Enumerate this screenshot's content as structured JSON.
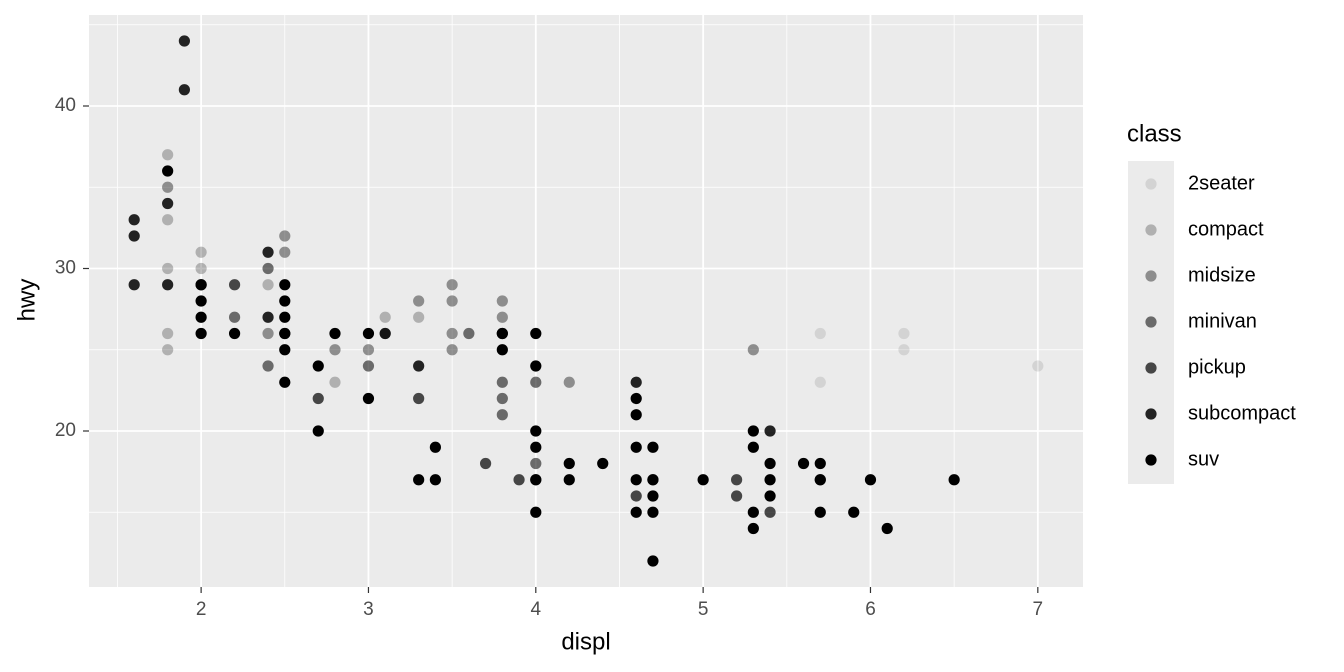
{
  "chart_data": {
    "type": "scatter",
    "x_label": "displ",
    "y_label": "hwy",
    "legend_title": "class",
    "legend_position": "right",
    "grid": true,
    "xlim": [
      1.33,
      7.27
    ],
    "ylim": [
      10.4,
      45.6
    ],
    "xticks": [
      2,
      3,
      4,
      5,
      6,
      7
    ],
    "yticks": [
      20,
      30,
      40
    ],
    "series": [
      {
        "name": "2seater",
        "color": "#000000",
        "alpha": 0.1,
        "x": [
          5.7,
          5.7,
          6.2,
          6.2,
          7
        ],
        "y": [
          26,
          23,
          26,
          25,
          24
        ]
      },
      {
        "name": "compact",
        "color": "#000000",
        "alpha": 0.25,
        "x": [
          1.8,
          1.8,
          1.8,
          1.8,
          1.8,
          2,
          2,
          2.4,
          2.8,
          3.1,
          3.3
        ],
        "y": [
          37,
          33,
          30,
          26,
          25,
          31,
          30,
          29,
          23,
          27,
          27
        ]
      },
      {
        "name": "midsize",
        "color": "#000000",
        "alpha": 0.4,
        "x": [
          1.8,
          2.5,
          2.5,
          2.4,
          3.5,
          3.5,
          3.5,
          3.5,
          3.8,
          3.8,
          3.3,
          2.8,
          3,
          5.3,
          4.2,
          3.1
        ],
        "y": [
          35,
          32,
          31,
          26,
          29,
          28,
          26,
          25,
          28,
          27,
          28,
          25,
          25,
          25,
          23,
          26
        ]
      },
      {
        "name": "minivan",
        "color": "#000000",
        "alpha": 0.55,
        "x": [
          2.4,
          3,
          3.8,
          3.8,
          3.8,
          4,
          4,
          3.6,
          2.2,
          2.4
        ],
        "y": [
          24,
          24,
          23,
          22,
          21,
          23,
          18,
          26,
          27,
          30
        ]
      },
      {
        "name": "pickup",
        "color": "#000000",
        "alpha": 0.7,
        "x": [
          2.7,
          3.7,
          3.9,
          4,
          4.7,
          5.2,
          5.4,
          5.7,
          4.6,
          5.2,
          2.2,
          3.3
        ],
        "y": [
          22,
          18,
          17,
          17,
          17,
          17,
          15,
          17,
          16,
          16,
          29,
          22
        ]
      },
      {
        "name": "subcompact",
        "color": "#000000",
        "alpha": 0.85,
        "x": [
          1.6,
          1.6,
          1.6,
          1.8,
          1.9,
          1.9,
          2,
          2.4,
          2.4,
          2.5,
          3.8,
          4.6,
          5.4,
          1.8,
          3.1,
          3.3
        ],
        "y": [
          33,
          32,
          29,
          34,
          44,
          41,
          29,
          31,
          27,
          26,
          26,
          23,
          20,
          29,
          26,
          24
        ]
      },
      {
        "name": "suv",
        "color": "#000000",
        "alpha": 1,
        "x": [
          1.8,
          2,
          2,
          2,
          2,
          2.2,
          2.5,
          2.5,
          2.5,
          2.5,
          2.5,
          2.5,
          2.7,
          2.7,
          2.8,
          3,
          3,
          3.3,
          3.4,
          3.4,
          3.8,
          3.8,
          4,
          4,
          4,
          4,
          4,
          4,
          4.2,
          4.2,
          4.4,
          4.6,
          4.6,
          4.6,
          4.6,
          4.6,
          4.7,
          4.7,
          4.7,
          4.7,
          4.7,
          5,
          5.3,
          5.3,
          5.3,
          5.3,
          5.4,
          5.4,
          5.4,
          5.6,
          5.7,
          5.7,
          5.7,
          5.9,
          6,
          6.1,
          6.5
        ],
        "y": [
          36,
          29,
          28,
          27,
          26,
          26,
          29,
          28,
          27,
          26,
          25,
          23,
          24,
          20,
          26,
          26,
          22,
          17,
          19,
          17,
          26,
          25,
          26,
          24,
          20,
          19,
          17,
          15,
          18,
          17,
          18,
          22,
          21,
          19,
          17,
          15,
          19,
          17,
          16,
          15,
          12,
          17,
          20,
          19,
          15,
          14,
          18,
          17,
          16,
          18,
          18,
          17,
          15,
          15,
          17,
          14,
          17
        ]
      }
    ]
  }
}
